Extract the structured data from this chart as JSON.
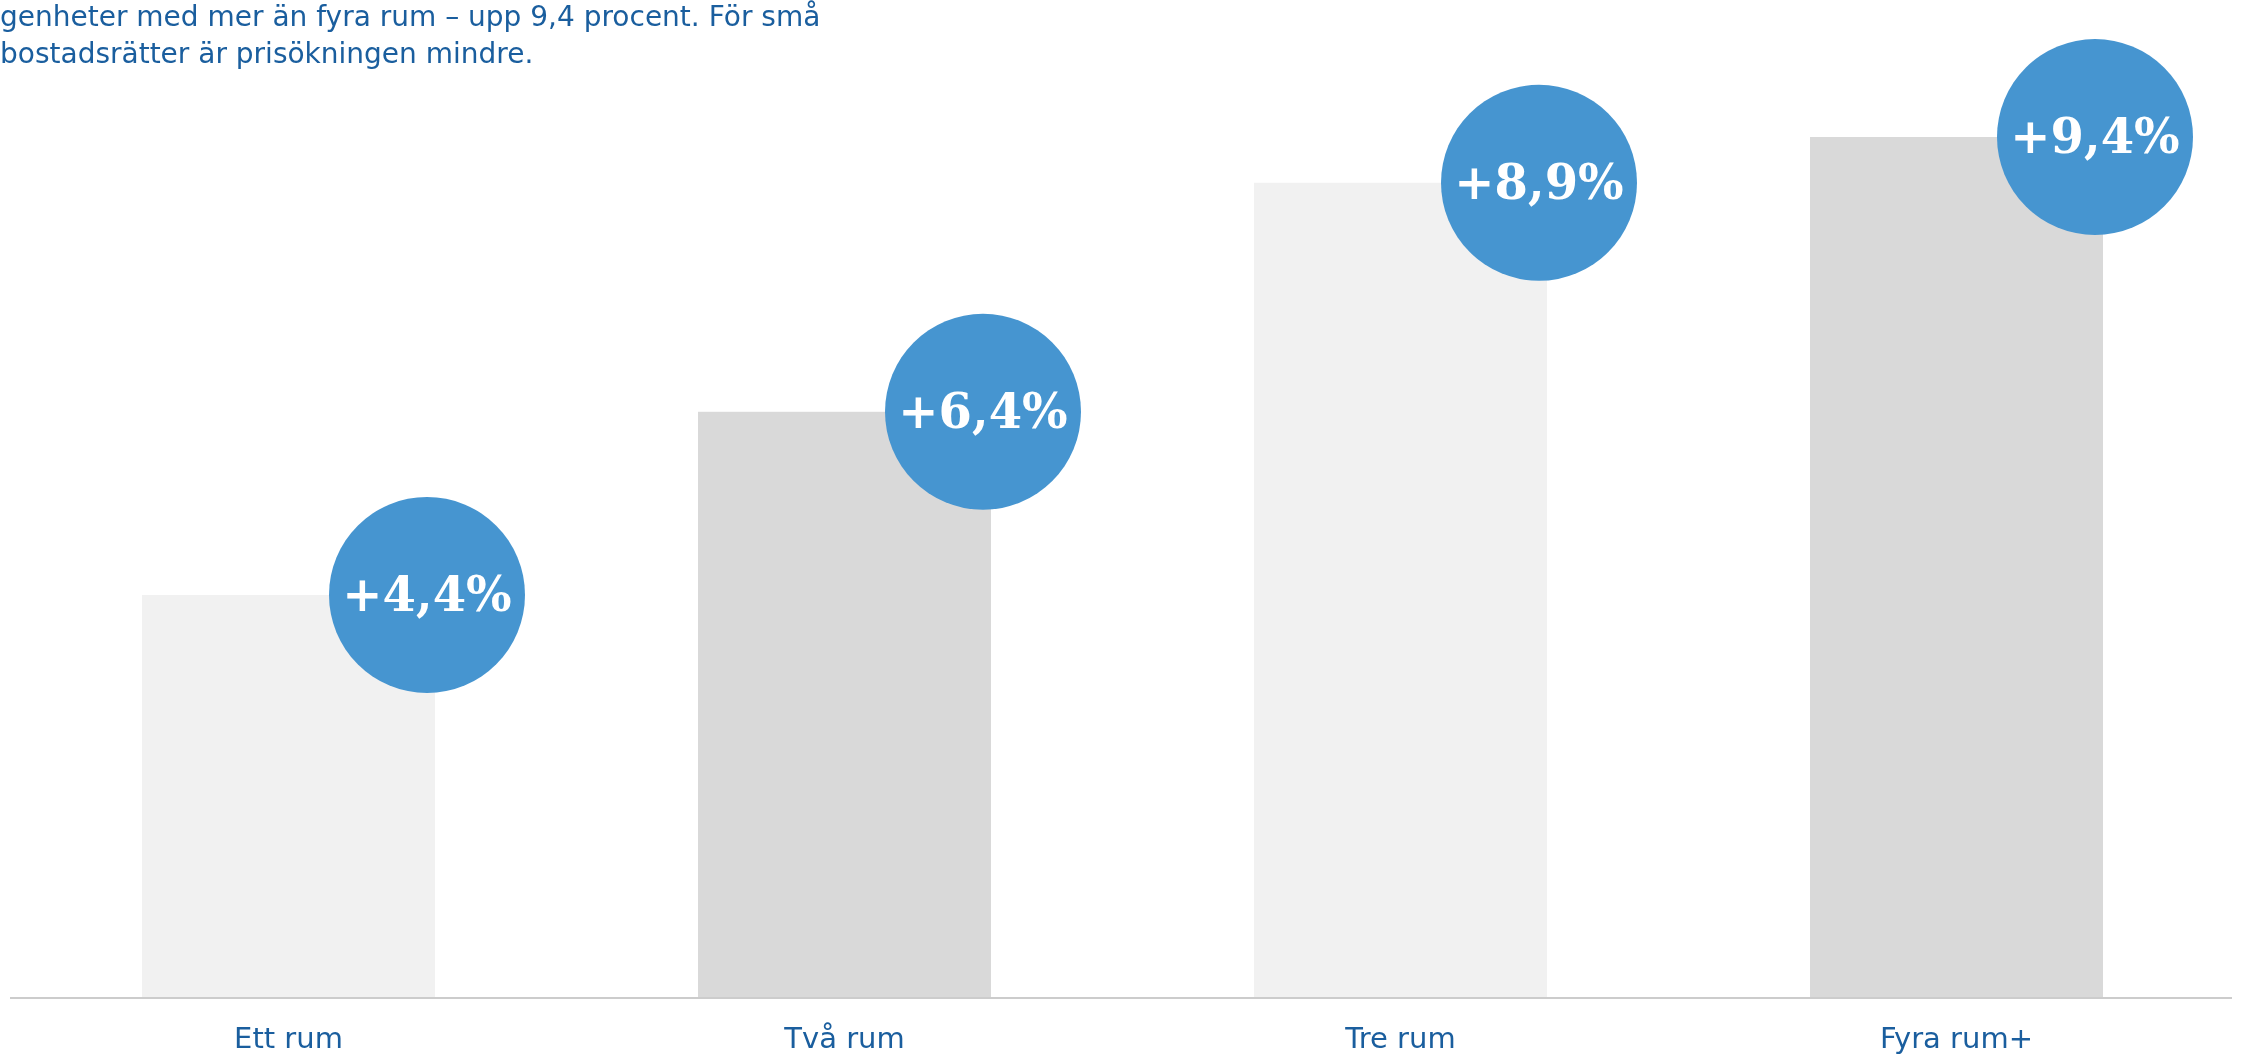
{
  "chart_data": {
    "type": "bar",
    "title": "genheter med mer än fyra rum – upp 9,4 procent. För små\nbostadsrätter är prisökningen mindre.",
    "categories": [
      "Ett rum",
      "Två rum",
      "Tre rum",
      "Fyra rum+"
    ],
    "values": [
      4.4,
      6.4,
      8.9,
      9.4
    ],
    "colors": [
      "#f1f1f1",
      "#d9d9d9",
      "#f1f1f1",
      "#d9d9d9"
    ],
    "value_labels": [
      "+4,4%",
      "+6,4%",
      "+8,9%",
      "+9,4%"
    ]
  }
}
